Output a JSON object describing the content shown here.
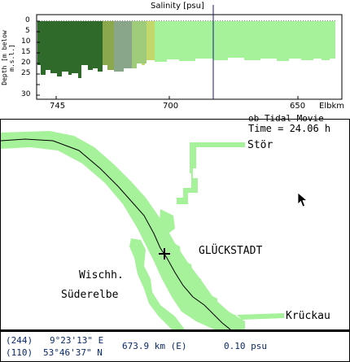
{
  "section": {
    "title": "Salinity [psu]",
    "ylabel": "Depth [m below m.s.l.]",
    "xunit": "Elbkm",
    "yticks": [
      "0",
      "5",
      "10",
      "15",
      "20",
      "25",
      "30"
    ],
    "xticks": [
      "745",
      "700",
      "650"
    ]
  },
  "map": {
    "header_partial": "ob Tidal Movie",
    "time_label": "Time = 24.06 h",
    "places": {
      "stor": "Stör",
      "gluckstadt": "GLÜCKSTADT",
      "wischhafen": "Wischh.",
      "suderelbe": "Süderelbe",
      "kruckau": "Krückau"
    }
  },
  "status": {
    "row1_code": "(244)",
    "row1_lon": "9°23'13\" E",
    "row2_code": "(110)",
    "row2_lat": "53°46'37\" N",
    "km": "673.9 km (E)",
    "salinity": "0.10 psu"
  },
  "colors": {
    "light_green": "#a6f29a",
    "dark_green": "#2f6a2a",
    "navy": "#0b2a6b"
  }
}
